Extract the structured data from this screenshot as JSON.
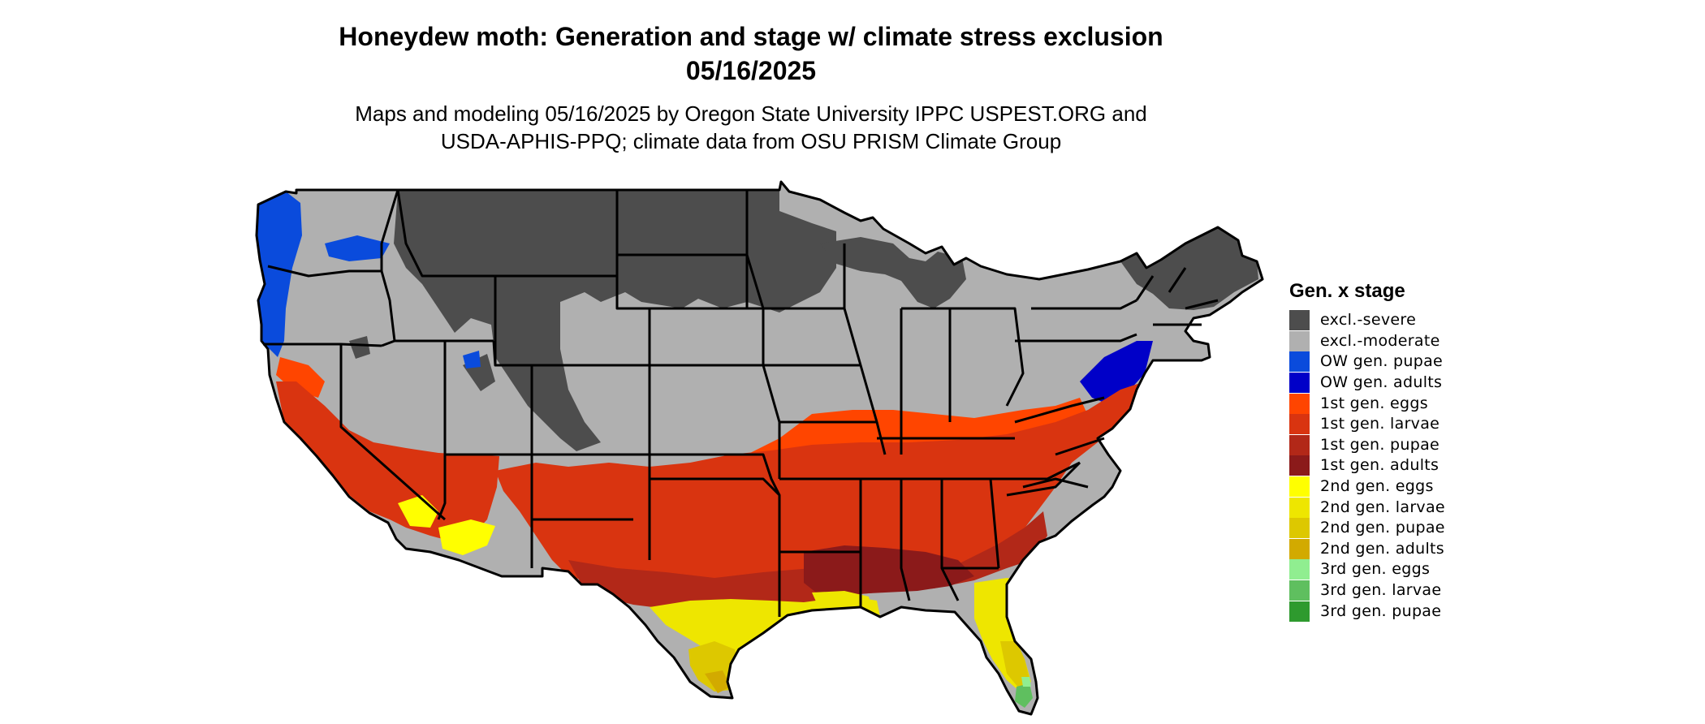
{
  "title_line1": "Honeydew moth: Generation and stage w/ climate stress exclusion",
  "title_line2": "05/16/2025",
  "subtitle_line1": "Maps and modeling 05/16/2025 by Oregon State University IPPC USPEST.ORG and",
  "subtitle_line2": "USDA-APHIS-PPQ; climate data from OSU PRISM Climate Group",
  "legend": {
    "title": "Gen. x stage",
    "items": [
      {
        "label": "excl.-severe",
        "color": "#4d4d4d"
      },
      {
        "label": "excl.-moderate",
        "color": "#b0b0b0"
      },
      {
        "label": "OW gen. pupae",
        "color": "#0a4bdc"
      },
      {
        "label": "OW gen. adults",
        "color": "#0000c8"
      },
      {
        "label": "1st gen. eggs",
        "color": "#ff4500"
      },
      {
        "label": "1st gen. larvae",
        "color": "#d93410"
      },
      {
        "label": "1st gen. pupae",
        "color": "#b22818"
      },
      {
        "label": "1st gen. adults",
        "color": "#8b1a1a"
      },
      {
        "label": "2nd gen. eggs",
        "color": "#ffff00"
      },
      {
        "label": "2nd gen. larvae",
        "color": "#eee600"
      },
      {
        "label": "2nd gen. pupae",
        "color": "#ddc800"
      },
      {
        "label": "2nd gen. adults",
        "color": "#d2aa00"
      },
      {
        "label": "3rd gen. eggs",
        "color": "#90ee90"
      },
      {
        "label": "3rd gen. larvae",
        "color": "#5fbf5f"
      },
      {
        "label": "3rd gen. pupae",
        "color": "#2e9a2e"
      }
    ]
  }
}
